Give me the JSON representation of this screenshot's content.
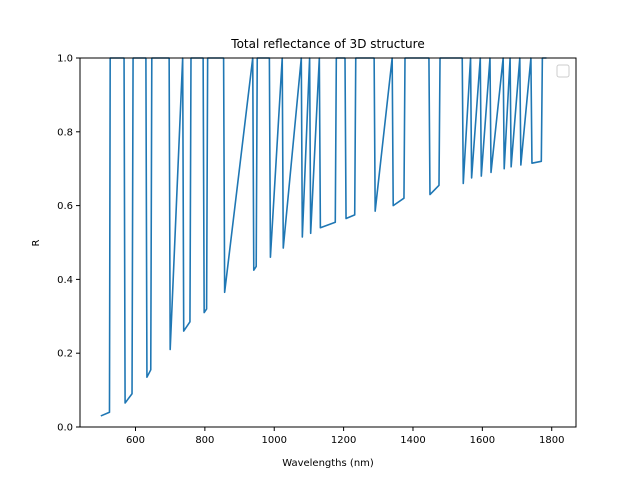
{
  "chart_data": {
    "type": "line",
    "title": "Total reflectance of 3D structure",
    "xlabel": "Wavelengths (nm)",
    "ylabel": "R",
    "xlim": [
      440,
      1870
    ],
    "ylim": [
      0,
      1
    ],
    "xticks": [
      600,
      800,
      1000,
      1200,
      1400,
      1600,
      1800
    ],
    "yticks": [
      0.0,
      0.2,
      0.4,
      0.6,
      0.8,
      1.0
    ],
    "xtick_labels": [
      "600",
      "800",
      "1000",
      "1200",
      "1400",
      "1600",
      "1800"
    ],
    "ytick_labels": [
      "0.0",
      "0.2",
      "0.4",
      "0.6",
      "0.8",
      "1.0"
    ],
    "grid": false,
    "legend": "top-right, empty",
    "series": [
      {
        "color": "#1f77b4",
        "x": [
          500,
          525,
          527,
          567,
          570,
          590,
          593,
          630,
          633,
          644,
          647,
          697,
          700,
          736,
          739,
          757,
          760,
          795,
          798,
          805,
          808,
          854,
          857,
          938,
          941,
          948,
          951,
          986,
          989,
          1023,
          1026,
          1078,
          1081,
          1102,
          1105,
          1130,
          1133,
          1176,
          1179,
          1204,
          1207,
          1232,
          1235,
          1288,
          1291,
          1340,
          1343,
          1374,
          1377,
          1446,
          1449,
          1475,
          1478,
          1542,
          1545,
          1566,
          1569,
          1594,
          1597,
          1622,
          1625,
          1660,
          1663,
          1680,
          1683,
          1708,
          1711,
          1740,
          1743,
          1770,
          1773,
          1785
        ],
        "y": [
          0.03,
          0.04,
          1.0,
          1.0,
          0.065,
          0.09,
          1.0,
          1.0,
          0.135,
          0.155,
          1.0,
          1.0,
          0.21,
          1.0,
          0.26,
          0.285,
          1.0,
          1.0,
          0.31,
          0.32,
          1.0,
          1.0,
          0.365,
          1.0,
          0.425,
          0.435,
          1.0,
          1.0,
          0.46,
          1.0,
          0.485,
          1.0,
          0.515,
          1.0,
          0.525,
          1.0,
          0.54,
          0.555,
          1.0,
          1.0,
          0.565,
          0.575,
          1.0,
          1.0,
          0.585,
          1.0,
          0.6,
          0.62,
          1.0,
          1.0,
          0.63,
          0.655,
          1.0,
          1.0,
          0.66,
          1.0,
          0.675,
          1.0,
          0.68,
          1.0,
          0.69,
          1.0,
          0.7,
          1.0,
          0.705,
          1.0,
          0.71,
          1.0,
          0.715,
          0.72,
          1.0,
          1.0
        ]
      }
    ]
  }
}
